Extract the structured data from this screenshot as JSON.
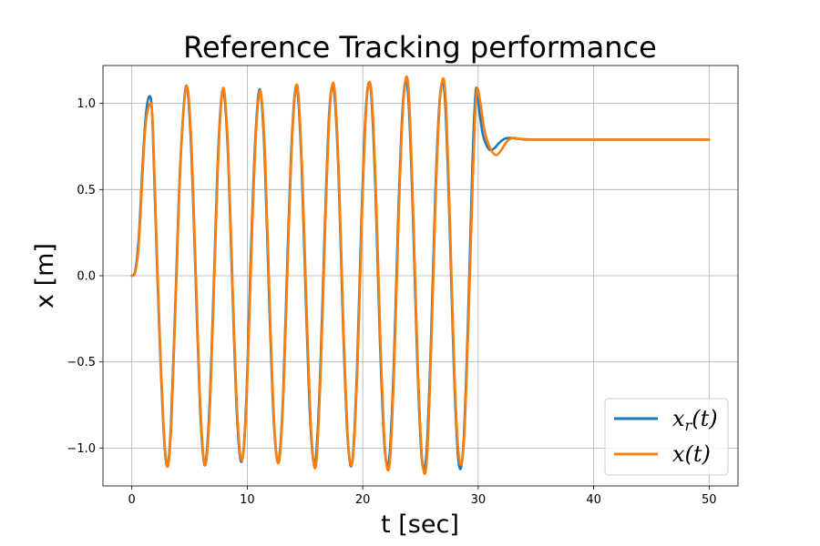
{
  "chart_data": {
    "type": "line",
    "title": "Reference Tracking performance",
    "xlabel": "t [sec]",
    "ylabel": "x [m]",
    "xlim": [
      -2.5,
      52.5
    ],
    "ylim": [
      -1.22,
      1.22
    ],
    "xticks": [
      0,
      10,
      20,
      30,
      40,
      50
    ],
    "yticks": [
      -1.0,
      -0.5,
      0.0,
      0.5,
      1.0
    ],
    "xtick_labels": [
      "0",
      "10",
      "20",
      "30",
      "40",
      "50"
    ],
    "ytick_labels": [
      "−1.0",
      "−0.5",
      "0.0",
      "0.5",
      "1.0"
    ],
    "grid": true,
    "legend_position": "bottom-right",
    "series": [
      {
        "name": "x_r(t)",
        "legend_main": "x",
        "legend_sub": "r",
        "legend_tail": "(t)",
        "color": "#1f77b4",
        "x": [
          0,
          0.3,
          0.6,
          0.9,
          1.2,
          1.5,
          1.75,
          2.0,
          2.4,
          2.8,
          3.1,
          3.4,
          3.8,
          4.2,
          4.7,
          5.1,
          5.5,
          5.9,
          6.3,
          6.7,
          7.1,
          7.5,
          7.9,
          8.3,
          8.7,
          9.1,
          9.5,
          9.9,
          10.3,
          10.7,
          11.1,
          11.5,
          11.9,
          12.3,
          12.7,
          13.1,
          13.5,
          13.9,
          14.3,
          14.7,
          15.1,
          15.5,
          15.9,
          16.3,
          16.7,
          17.1,
          17.5,
          17.9,
          18.3,
          18.7,
          19.1,
          19.5,
          19.9,
          20.3,
          20.7,
          21.1,
          21.5,
          21.9,
          22.3,
          22.7,
          23.1,
          23.5,
          23.9,
          24.3,
          24.7,
          25.1,
          25.5,
          25.9,
          26.3,
          26.7,
          27.1,
          27.5,
          27.9,
          28.3,
          28.7,
          29.1,
          29.5,
          29.8,
          30.1,
          30.4,
          30.7,
          31.0,
          31.4,
          31.8,
          32.3,
          32.8,
          33.4,
          34.0,
          35.0,
          37.0,
          40.0,
          45.0,
          50.0
        ],
        "y": [
          0.0,
          0.03,
          0.22,
          0.6,
          0.92,
          1.04,
          0.95,
          0.45,
          -0.35,
          -0.95,
          -1.1,
          -0.85,
          -0.1,
          0.65,
          1.1,
          0.8,
          0.05,
          -0.75,
          -1.1,
          -0.8,
          -0.05,
          0.75,
          1.08,
          0.75,
          -0.05,
          -0.8,
          -1.08,
          -0.75,
          0.1,
          0.8,
          1.08,
          0.7,
          -0.15,
          -0.85,
          -1.08,
          -0.7,
          0.15,
          0.85,
          1.1,
          0.65,
          -0.2,
          -0.9,
          -1.08,
          -0.6,
          0.25,
          0.95,
          1.08,
          0.6,
          -0.3,
          -0.95,
          -1.08,
          -0.55,
          0.35,
          1.0,
          1.08,
          0.5,
          -0.4,
          -1.0,
          -1.06,
          -0.5,
          0.4,
          1.02,
          1.08,
          0.45,
          -0.45,
          -1.05,
          -1.05,
          -0.4,
          0.5,
          1.05,
          1.05,
          0.35,
          -0.55,
          -1.08,
          -1.0,
          -0.3,
          0.65,
          1.08,
          0.95,
          0.82,
          0.76,
          0.73,
          0.74,
          0.77,
          0.795,
          0.8,
          0.795,
          0.792,
          0.79,
          0.79,
          0.79,
          0.79,
          0.79
        ]
      },
      {
        "name": "x(t)",
        "legend_main": "x",
        "legend_sub": "",
        "legend_tail": "(t)",
        "color": "#ff7f0e",
        "x": [
          0,
          0.3,
          0.6,
          0.9,
          1.2,
          1.6,
          1.8,
          2.05,
          2.45,
          2.85,
          3.15,
          3.45,
          3.85,
          4.25,
          4.75,
          5.15,
          5.55,
          5.95,
          6.35,
          6.75,
          7.15,
          7.55,
          7.95,
          8.35,
          8.75,
          9.15,
          9.55,
          9.95,
          10.35,
          10.75,
          11.15,
          11.55,
          11.95,
          12.35,
          12.75,
          13.15,
          13.55,
          13.95,
          14.35,
          14.75,
          15.15,
          15.55,
          15.95,
          16.35,
          16.75,
          17.15,
          17.55,
          17.95,
          18.35,
          18.75,
          19.15,
          19.55,
          19.95,
          20.35,
          20.75,
          21.15,
          21.55,
          21.95,
          22.35,
          22.75,
          23.15,
          23.55,
          23.95,
          24.35,
          24.75,
          25.15,
          25.55,
          25.95,
          26.35,
          26.75,
          27.15,
          27.55,
          27.95,
          28.35,
          28.75,
          29.15,
          29.55,
          29.85,
          30.15,
          30.45,
          30.8,
          31.2,
          31.6,
          32.0,
          32.5,
          33.0,
          33.5,
          34.0,
          35.0,
          37.0,
          40.0,
          45.0,
          50.0
        ],
        "y": [
          0.0,
          0.02,
          0.18,
          0.55,
          0.88,
          1.0,
          0.9,
          0.4,
          -0.4,
          -0.98,
          -1.1,
          -0.82,
          -0.05,
          0.7,
          1.1,
          0.78,
          0.0,
          -0.78,
          -1.1,
          -0.78,
          0.0,
          0.78,
          1.09,
          0.72,
          -0.1,
          -0.82,
          -1.07,
          -0.72,
          0.12,
          0.82,
          1.07,
          0.68,
          -0.18,
          -0.88,
          -1.08,
          -0.66,
          0.18,
          0.88,
          1.1,
          0.62,
          -0.22,
          -0.92,
          -1.1,
          -0.58,
          0.28,
          0.97,
          1.09,
          0.56,
          -0.34,
          -0.98,
          -1.06,
          -0.52,
          0.38,
          1.02,
          1.07,
          0.48,
          -0.42,
          -1.02,
          -1.08,
          -0.48,
          0.42,
          1.04,
          1.1,
          0.42,
          -0.48,
          -1.07,
          -1.07,
          -0.38,
          0.52,
          1.07,
          1.06,
          0.32,
          -0.58,
          -1.06,
          -0.98,
          -0.28,
          0.6,
          1.06,
          1.02,
          0.88,
          0.78,
          0.72,
          0.7,
          0.73,
          0.78,
          0.8,
          0.795,
          0.79,
          0.79,
          0.79,
          0.79,
          0.79,
          0.79
        ]
      }
    ]
  }
}
